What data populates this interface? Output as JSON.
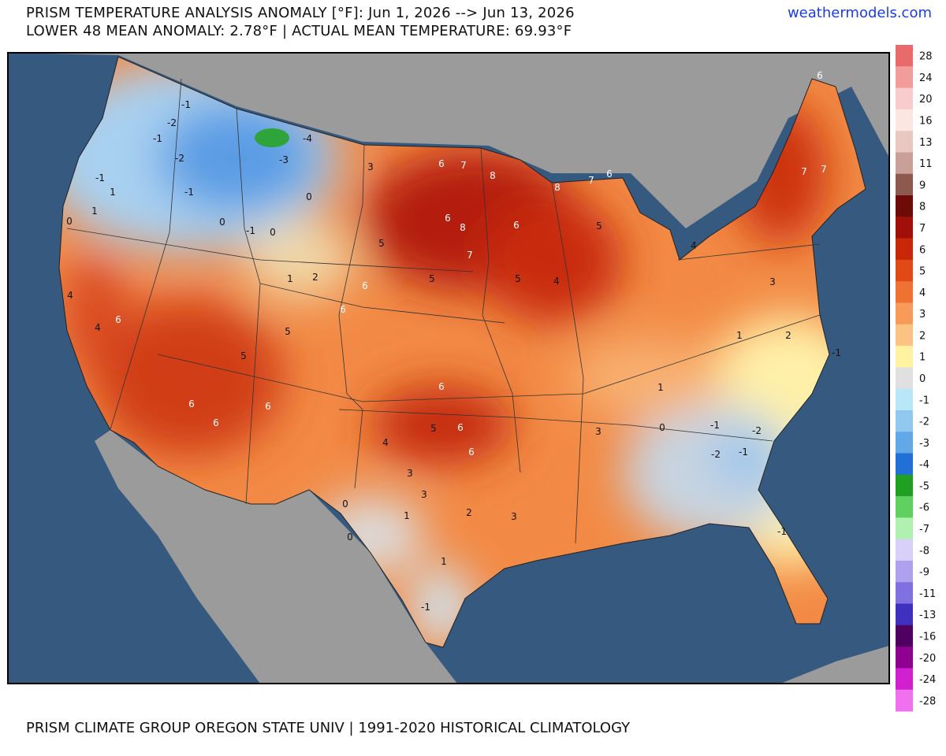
{
  "header": {
    "title": "PRISM TEMPERATURE ANALYSIS ANOMALY [°F]: Jun 1, 2026 --> Jun 13, 2026",
    "subtitle": "LOWER 48 MEAN ANOMALY: 2.78°F | ACTUAL MEAN TEMPERATURE: 69.93°F",
    "site": "weathermodels.com"
  },
  "legend": {
    "items": [
      {
        "label": 28,
        "color": "#e86a6a"
      },
      {
        "label": 24,
        "color": "#f29c9c"
      },
      {
        "label": 20,
        "color": "#f8cccc"
      },
      {
        "label": 16,
        "color": "#fbe6e2"
      },
      {
        "label": 13,
        "color": "#e8c8c0"
      },
      {
        "label": 11,
        "color": "#c8a098"
      },
      {
        "label": 9,
        "color": "#8e5a50"
      },
      {
        "label": 8,
        "color": "#6e0a08"
      },
      {
        "label": 7,
        "color": "#a01008"
      },
      {
        "label": 6,
        "color": "#c82808"
      },
      {
        "label": 5,
        "color": "#e04a14"
      },
      {
        "label": 4,
        "color": "#f07232"
      },
      {
        "label": 3,
        "color": "#f89a58"
      },
      {
        "label": 2,
        "color": "#fcc282"
      },
      {
        "label": 1,
        "color": "#fff2a0"
      },
      {
        "label": 0,
        "color": "#e0e0e0"
      },
      {
        "label": -1,
        "color": "#b8e8f8"
      },
      {
        "label": -2,
        "color": "#90c8f0"
      },
      {
        "label": -3,
        "color": "#60a8e8"
      },
      {
        "label": -4,
        "color": "#2070d8"
      },
      {
        "label": -5,
        "color": "#20a020"
      },
      {
        "label": -6,
        "color": "#60d060"
      },
      {
        "label": -7,
        "color": "#b0f0b0"
      },
      {
        "label": -8,
        "color": "#d8d0f8"
      },
      {
        "label": -9,
        "color": "#b0a0f0"
      },
      {
        "label": -11,
        "color": "#8070e0"
      },
      {
        "label": -13,
        "color": "#4030c0"
      },
      {
        "label": -16,
        "color": "#500060"
      },
      {
        "label": -20,
        "color": "#900090"
      },
      {
        "label": -24,
        "color": "#d020d0"
      },
      {
        "label": -28,
        "color": "#f070f0"
      }
    ]
  },
  "map": {
    "labels": [
      -1,
      -2,
      -1,
      -2,
      -1,
      1,
      1,
      0,
      -1,
      0,
      -1,
      0,
      1,
      2,
      -4,
      -3,
      0,
      3,
      6,
      7,
      8,
      6,
      8,
      7,
      6,
      8,
      7,
      6,
      5,
      4,
      5,
      5,
      5,
      6,
      6,
      5,
      5,
      6,
      4,
      4,
      6,
      6,
      6,
      6,
      6,
      5,
      6,
      4,
      3,
      3,
      2,
      3,
      3,
      0,
      -1,
      -2,
      -2,
      -1,
      -1,
      6,
      7,
      7,
      4,
      3,
      2,
      -1,
      1,
      1,
      -1,
      0,
      0,
      1,
      1
    ]
  },
  "footer": "PRISM CLIMATE GROUP OREGON STATE UNIV | 1991-2020 HISTORICAL CLIMATOLOGY"
}
